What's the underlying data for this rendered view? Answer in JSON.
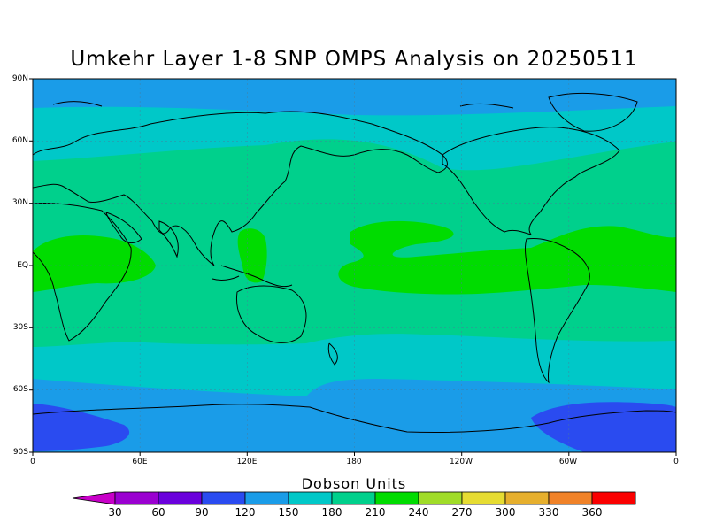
{
  "title": "Umkehr Layer 1-8 SNP OMPS Analysis on 20250511",
  "lat_labels": [
    "90N",
    "60N",
    "30N",
    "EQ",
    "30S",
    "60S",
    "90S"
  ],
  "lon_labels": [
    "0",
    "60E",
    "120E",
    "180",
    "120W",
    "60W",
    "0"
  ],
  "colorbar": {
    "label": "Dobson Units",
    "ticks": [
      "30",
      "60",
      "90",
      "120",
      "150",
      "180",
      "210",
      "240",
      "270",
      "300",
      "330",
      "360"
    ],
    "colors": [
      "#9a00d0",
      "#6a00dc",
      "#2a4bf0",
      "#1a9ce8",
      "#00c8c8",
      "#00d08c",
      "#00dc00",
      "#a0dc28",
      "#e6dc32",
      "#e6af2d",
      "#f08228",
      "#fa0000"
    ],
    "under_color": "#c800c8",
    "over_color": "#e1147d"
  },
  "map": {
    "projection": "cylindrical equidistant",
    "lon_range": [
      0,
      360
    ],
    "lat_range": [
      -90,
      90
    ],
    "background_color": "#1a9ce8",
    "colors": {
      "dobson_90_120": "#1a9ce8",
      "dobson_120_150": "#00c8c8",
      "dobson_150_180": "#00d08c",
      "dobson_180_210": "#00dc00",
      "dobson_60_90": "#2a4bf0"
    }
  }
}
